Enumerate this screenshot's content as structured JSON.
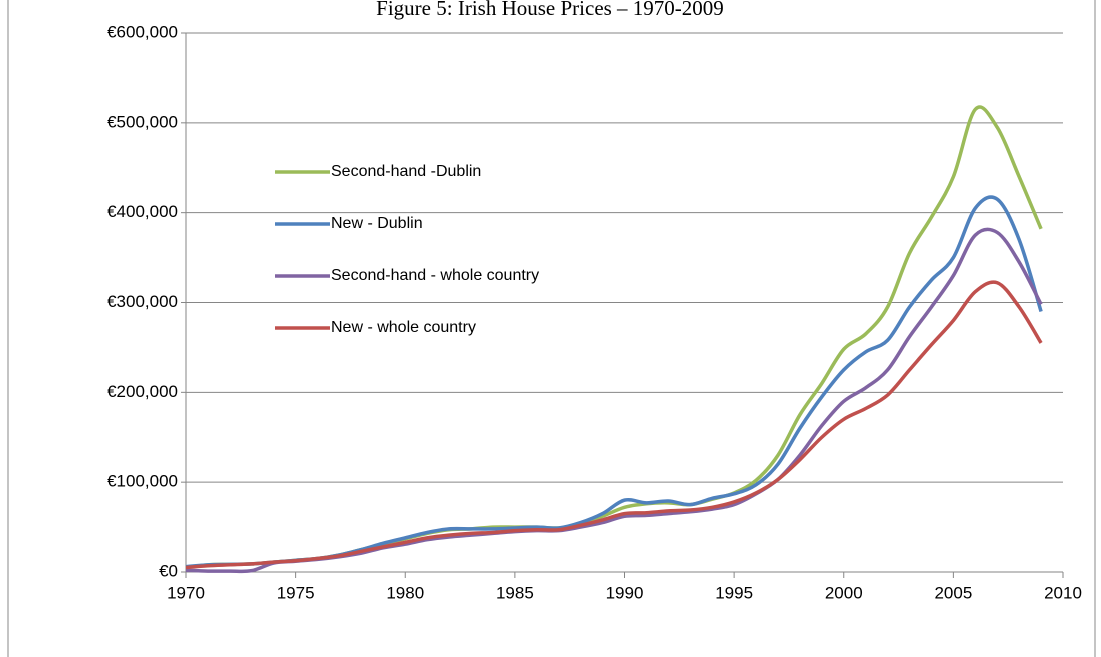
{
  "chart_data": {
    "type": "line",
    "title": "Figure 5: Irish House Prices – 1970-2009",
    "x": [
      1970,
      1971,
      1972,
      1973,
      1974,
      1975,
      1976,
      1977,
      1978,
      1979,
      1980,
      1981,
      1982,
      1983,
      1984,
      1985,
      1986,
      1987,
      1988,
      1989,
      1990,
      1991,
      1992,
      1993,
      1994,
      1995,
      1996,
      1997,
      1998,
      1999,
      2000,
      2001,
      2002,
      2003,
      2004,
      2005,
      2006,
      2007,
      2008,
      2009
    ],
    "series": [
      {
        "name": "Second-hand -Dublin",
        "color": "#9bbb59",
        "values": [
          5000,
          8000,
          8500,
          9000,
          11000,
          13000,
          15000,
          19000,
          25000,
          31000,
          37000,
          43000,
          47000,
          48000,
          50000,
          50000,
          50000,
          49000,
          53000,
          62000,
          72000,
          76000,
          77000,
          75000,
          81000,
          88000,
          102000,
          130000,
          175000,
          210000,
          248000,
          265000,
          295000,
          355000,
          395000,
          440000,
          515000,
          495000,
          440000,
          382000
        ]
      },
      {
        "name": "New - Dublin",
        "color": "#4f81bd",
        "values": [
          6000,
          8000,
          8500,
          9000,
          11000,
          13000,
          15000,
          19000,
          25000,
          32000,
          38000,
          44000,
          48000,
          48000,
          48000,
          49000,
          50000,
          49000,
          55000,
          65000,
          80000,
          77000,
          79000,
          75000,
          82000,
          87000,
          97000,
          120000,
          160000,
          195000,
          225000,
          245000,
          258000,
          295000,
          325000,
          350000,
          405000,
          415000,
          370000,
          290000
        ]
      },
      {
        "name": "Second-hand - whole country",
        "color": "#8064a2",
        "values": [
          2000,
          1000,
          1000,
          1500,
          10000,
          12000,
          14000,
          17000,
          21000,
          27000,
          31000,
          36000,
          39000,
          41000,
          43000,
          45000,
          46000,
          46000,
          50000,
          55000,
          62000,
          63000,
          65000,
          67000,
          70000,
          75000,
          87000,
          103000,
          130000,
          163000,
          190000,
          205000,
          225000,
          262000,
          295000,
          330000,
          375000,
          378000,
          345000,
          298000
        ]
      },
      {
        "name": "New - whole country",
        "color": "#c0504d",
        "values": [
          5000,
          7000,
          8000,
          9000,
          11000,
          12500,
          15000,
          18000,
          23000,
          28000,
          33000,
          38000,
          41000,
          43000,
          44000,
          46000,
          47000,
          47000,
          52000,
          58000,
          65000,
          66000,
          68000,
          69000,
          72000,
          78000,
          88000,
          103000,
          125000,
          150000,
          170000,
          182000,
          197000,
          225000,
          253000,
          280000,
          312000,
          322000,
          295000,
          255000
        ]
      }
    ],
    "xlim": [
      1970,
      2010
    ],
    "xticks": [
      1970,
      1975,
      1980,
      1985,
      1990,
      1995,
      2000,
      2005,
      2010
    ],
    "ylim": [
      0,
      600000
    ],
    "yticks": [
      {
        "value": 0,
        "label": "€0"
      },
      {
        "value": 100000,
        "label": "€100,000"
      },
      {
        "value": 200000,
        "label": "€200,000"
      },
      {
        "value": 300000,
        "label": "€300,000"
      },
      {
        "value": 400000,
        "label": "€400,000"
      },
      {
        "value": 500000,
        "label": "€500,000"
      },
      {
        "value": 600000,
        "label": "€600,000"
      }
    ],
    "grid": true
  }
}
